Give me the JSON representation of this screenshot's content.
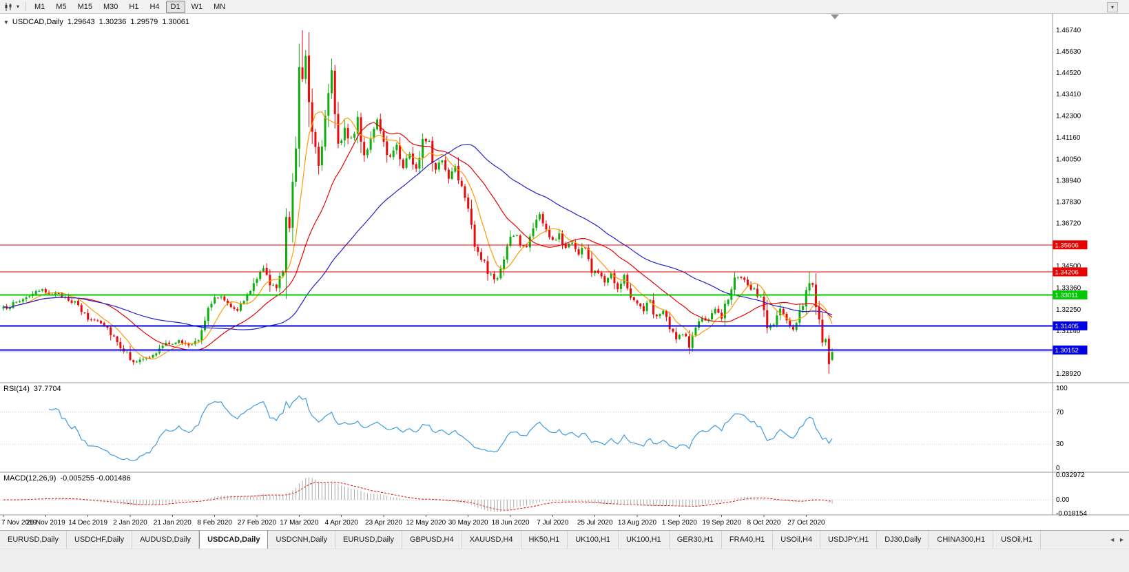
{
  "toolbar": {
    "dropdown_icon": "▾",
    "overflow_icon": "▾",
    "timeframes": [
      "M1",
      "M5",
      "M15",
      "M30",
      "H1",
      "H4",
      "D1",
      "W1",
      "MN"
    ],
    "active_timeframe": "D1"
  },
  "chart_header": {
    "collapse_icon": "▼",
    "symbol": "USDCAD,Daily",
    "open": "1.29643",
    "high": "1.30236",
    "low": "1.29579",
    "close": "1.30061"
  },
  "indicator_labels": {
    "rsi_name": "RSI(14)",
    "rsi_value": "37.7704",
    "macd_name": "MACD(12,26,9)",
    "macd_values": "-0.005255 -0.001486"
  },
  "tabs": {
    "active_index": 3,
    "scroll_left": "◄",
    "scroll_right": "►",
    "items": [
      "EURUSD,Daily",
      "USDCHF,Daily",
      "AUDUSD,Daily",
      "USDCAD,Daily",
      "USDCNH,Daily",
      "EURUSD,Daily",
      "GBPUSD,H4",
      "XAUUSD,H4",
      "HK50,H1",
      "UK100,H1",
      "UK100,H1",
      "GER30,H1",
      "FRA40,H1",
      "USOil,H4",
      "USDJPY,H1",
      "DJ30,Daily",
      "CHINA300,H1",
      "USOil,H1"
    ]
  },
  "chart_data": {
    "type": "candlestick",
    "symbol": "USDCAD",
    "timeframe": "Daily",
    "days": 256,
    "bar_spacing": 4.718,
    "price_range": [
      1.286,
      1.4745
    ],
    "up_color": "#0FAE0F",
    "down_color": "#EA0A0A",
    "price_axis_ticks": [
      "1.46740",
      "1.45630",
      "1.44520",
      "1.43410",
      "1.42300",
      "1.41160",
      "1.40050",
      "1.38940",
      "1.37830",
      "1.36720",
      "1.35610",
      "1.34500",
      "1.33360",
      "1.32250",
      "1.31140",
      "1.30030",
      "1.28920"
    ],
    "date_axis": {
      "day_step": 13,
      "labels": [
        "7 Nov 2019",
        "26 Nov 2019",
        "14 Dec 2019",
        "2 Jan 2020",
        "21 Jan 2020",
        "8 Feb 2020",
        "27 Feb 2020",
        "17 Mar 2020",
        "4 Apr 2020",
        "23 Apr 2020",
        "12 May 2020",
        "30 May 2020",
        "18 Jun 2020",
        "7 Jul 2020",
        "25 Jul 2020",
        "13 Aug 2020",
        "1 Sep 2020",
        "19 Sep 2020",
        "8 Oct 2020",
        "27 Oct 2020"
      ]
    },
    "levels": [
      {
        "label": "1.35606",
        "price": 1.35606,
        "color": "#E60000",
        "width": 1
      },
      {
        "label": "1.34206",
        "price": 1.34206,
        "color": "#E60000",
        "width": 1
      },
      {
        "label": "1.33011",
        "price": 1.33011,
        "color": "#00C800",
        "width": 2
      },
      {
        "label": "1.31405",
        "price": 1.31405,
        "color": "#0000E6",
        "width": 2
      },
      {
        "label": "1.30152",
        "price": 1.30152,
        "color": "#0000E6",
        "width": 2
      }
    ],
    "current_price": 1.30061,
    "current_price_color": "#C0C0C0",
    "moving_averages": [
      {
        "period": 8,
        "color": "#FF9900"
      },
      {
        "period": 24,
        "color": "#E60000"
      },
      {
        "period": 55,
        "color": "#2222CC"
      }
    ],
    "close_anchors": [
      [
        0,
        1.323
      ],
      [
        4,
        1.3262
      ],
      [
        8,
        1.33
      ],
      [
        12,
        1.3322
      ],
      [
        16,
        1.3305
      ],
      [
        20,
        1.3285
      ],
      [
        23,
        1.324
      ],
      [
        26,
        1.3175
      ],
      [
        30,
        1.3168
      ],
      [
        33,
        1.311
      ],
      [
        36,
        1.3035
      ],
      [
        40,
        1.2958
      ],
      [
        43,
        1.2962
      ],
      [
        46,
        1.2985
      ],
      [
        50,
        1.3048
      ],
      [
        54,
        1.306
      ],
      [
        57,
        1.3035
      ],
      [
        60,
        1.308
      ],
      [
        63,
        1.3245
      ],
      [
        66,
        1.3298
      ],
      [
        69,
        1.326
      ],
      [
        72,
        1.3228
      ],
      [
        75,
        1.329
      ],
      [
        78,
        1.3392
      ],
      [
        80,
        1.343
      ],
      [
        82,
        1.3365
      ],
      [
        84,
        1.333
      ],
      [
        86,
        1.343
      ],
      [
        87,
        1.3735
      ],
      [
        88,
        1.366
      ],
      [
        89,
        1.391
      ],
      [
        90,
        1.406
      ],
      [
        91,
        1.45
      ],
      [
        92,
        1.443
      ],
      [
        93,
        1.456
      ],
      [
        94,
        1.433
      ],
      [
        95,
        1.416
      ],
      [
        97,
        1.399
      ],
      [
        99,
        1.421
      ],
      [
        101,
        1.444
      ],
      [
        103,
        1.408
      ],
      [
        105,
        1.417
      ],
      [
        107,
        1.4085
      ],
      [
        109,
        1.422
      ],
      [
        111,
        1.403
      ],
      [
        113,
        1.411
      ],
      [
        115,
        1.4185
      ],
      [
        117,
        1.409
      ],
      [
        119,
        1.401
      ],
      [
        121,
        1.409
      ],
      [
        123,
        1.397
      ],
      [
        125,
        1.4035
      ],
      [
        127,
        1.394
      ],
      [
        129,
        1.4115
      ],
      [
        131,
        1.41
      ],
      [
        133,
        1.3935
      ],
      [
        135,
        1.401
      ],
      [
        137,
        1.3905
      ],
      [
        139,
        1.398
      ],
      [
        141,
        1.3865
      ],
      [
        143,
        1.378
      ],
      [
        145,
        1.3565
      ],
      [
        147,
        1.3495
      ],
      [
        149,
        1.3415
      ],
      [
        151,
        1.3385
      ],
      [
        153,
        1.3415
      ],
      [
        155,
        1.3545
      ],
      [
        157,
        1.3625
      ],
      [
        159,
        1.356
      ],
      [
        161,
        1.3545
      ],
      [
        163,
        1.366
      ],
      [
        165,
        1.371
      ],
      [
        167,
        1.3635
      ],
      [
        169,
        1.3575
      ],
      [
        171,
        1.361
      ],
      [
        173,
        1.3545
      ],
      [
        175,
        1.3585
      ],
      [
        177,
        1.351
      ],
      [
        179,
        1.3565
      ],
      [
        181,
        1.3415
      ],
      [
        183,
        1.3425
      ],
      [
        185,
        1.338
      ],
      [
        187,
        1.3415
      ],
      [
        189,
        1.3345
      ],
      [
        191,
        1.339
      ],
      [
        193,
        1.33
      ],
      [
        195,
        1.3252
      ],
      [
        197,
        1.3228
      ],
      [
        199,
        1.3268
      ],
      [
        201,
        1.3182
      ],
      [
        203,
        1.3212
      ],
      [
        205,
        1.313
      ],
      [
        207,
        1.3062
      ],
      [
        209,
        1.3118
      ],
      [
        211,
        1.3038
      ],
      [
        213,
        1.3128
      ],
      [
        215,
        1.3182
      ],
      [
        217,
        1.3162
      ],
      [
        219,
        1.3218
      ],
      [
        221,
        1.3202
      ],
      [
        223,
        1.3302
      ],
      [
        225,
        1.3392
      ],
      [
        227,
        1.3382
      ],
      [
        229,
        1.3348
      ],
      [
        231,
        1.3322
      ],
      [
        233,
        1.3282
      ],
      [
        235,
        1.3132
      ],
      [
        237,
        1.3142
      ],
      [
        239,
        1.3228
      ],
      [
        241,
        1.3158
      ],
      [
        243,
        1.3132
      ],
      [
        245,
        1.3208
      ],
      [
        247,
        1.3322
      ],
      [
        248,
        1.3388
      ],
      [
        249,
        1.3322
      ],
      [
        250,
        1.3222
      ],
      [
        251,
        1.3142
      ],
      [
        252,
        1.3062
      ],
      [
        253,
        1.3052
      ],
      [
        254,
        1.2965
      ],
      [
        255,
        1.30061
      ]
    ],
    "wick_overrides": {
      "92": {
        "high": 1.4674
      },
      "211": {
        "low": 1.2994
      },
      "225": {
        "high": 1.3419
      },
      "248": {
        "high": 1.3421
      },
      "254": {
        "low": 1.2892
      },
      "255": {
        "open": 1.29643,
        "high": 1.30236,
        "low": 1.29579,
        "close": 1.30061
      }
    },
    "rsi": {
      "period": 14,
      "current": 37.7704,
      "color": "#3E9BDE",
      "levels": [
        70,
        30
      ],
      "axis_labels": [
        "100",
        "70",
        "30",
        "0"
      ],
      "range": [
        0,
        100
      ]
    },
    "macd": {
      "fast": 12,
      "slow": 26,
      "signal": 9,
      "macd_value": -0.005255,
      "signal_value": -0.001486,
      "hist_color": "#A8A8A8",
      "signal_color": "#E60000",
      "range": [
        -0.018154,
        0.032972
      ],
      "axis_labels": [
        "0.032972",
        "0.00",
        "-0.018154"
      ]
    }
  }
}
